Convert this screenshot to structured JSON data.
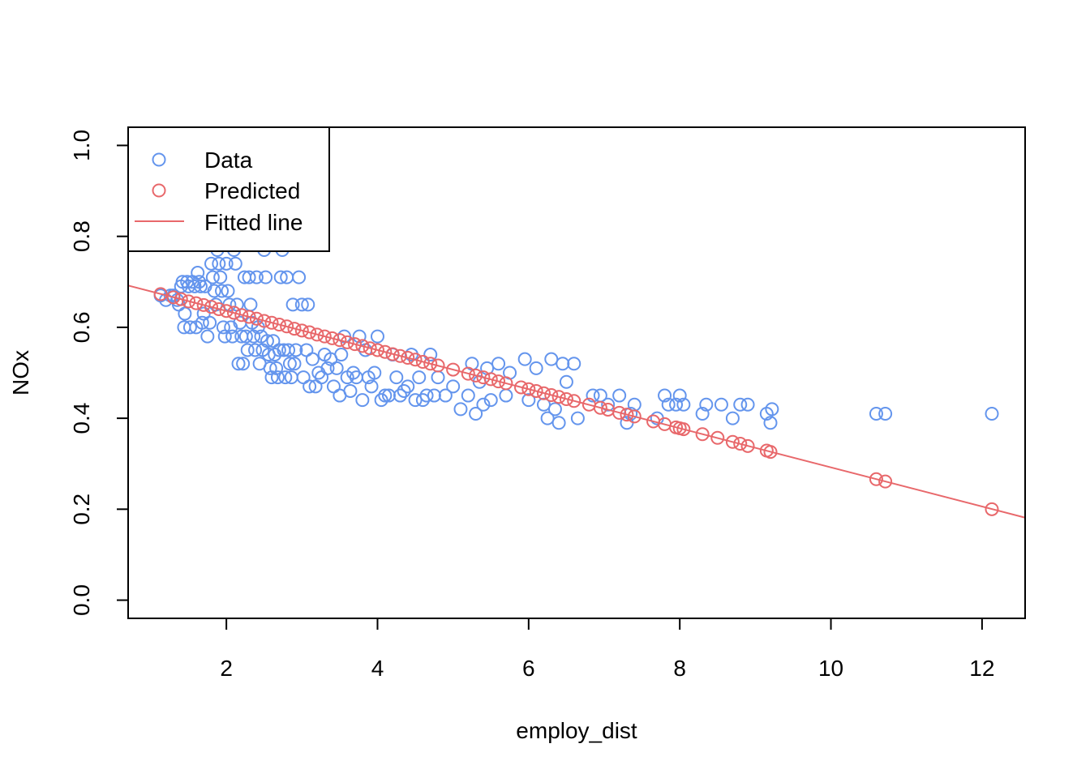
{
  "chart_data": {
    "type": "scatter",
    "title": "",
    "xlabel": "employ_dist",
    "ylabel": "NOx",
    "xlim": [
      0.7,
      12.57
    ],
    "ylim": [
      -0.04,
      1.04
    ],
    "x_ticks": [
      2,
      4,
      6,
      8,
      10,
      12
    ],
    "y_ticks": [
      0.0,
      0.2,
      0.4,
      0.6,
      0.8,
      1.0
    ],
    "x_tick_labels": [
      "2",
      "4",
      "6",
      "8",
      "10",
      "12"
    ],
    "y_tick_labels": [
      "0.0",
      "0.2",
      "0.4",
      "0.6",
      "0.8",
      "1.0"
    ],
    "grid": false,
    "legend": {
      "position": "top-left",
      "entries": [
        {
          "label": "Data",
          "type": "point",
          "color": "#6495ED"
        },
        {
          "label": "Predicted",
          "type": "point",
          "color": "#E8686B"
        },
        {
          "label": "Fitted line",
          "type": "line",
          "color": "#E8686B"
        }
      ]
    },
    "fitted_line": {
      "name": "Fitted line",
      "color": "#E8686B",
      "intercept": 0.722,
      "slope": -0.043
    },
    "series": [
      {
        "name": "Data",
        "color": "#6495ED",
        "points": [
          [
            1.13,
            0.67
          ],
          [
            1.2,
            0.66
          ],
          [
            1.26,
            0.67
          ],
          [
            1.3,
            0.67
          ],
          [
            1.35,
            0.66
          ],
          [
            1.37,
            0.65
          ],
          [
            1.4,
            0.69
          ],
          [
            1.42,
            0.7
          ],
          [
            1.44,
            0.6
          ],
          [
            1.45,
            0.63
          ],
          [
            1.48,
            0.7
          ],
          [
            1.5,
            0.69
          ],
          [
            1.52,
            0.6
          ],
          [
            1.55,
            0.7
          ],
          [
            1.58,
            0.69
          ],
          [
            1.6,
            0.6
          ],
          [
            1.62,
            0.72
          ],
          [
            1.64,
            0.7
          ],
          [
            1.66,
            0.69
          ],
          [
            1.68,
            0.61
          ],
          [
            1.7,
            0.63
          ],
          [
            1.72,
            0.69
          ],
          [
            1.75,
            0.58
          ],
          [
            1.78,
            0.61
          ],
          [
            1.8,
            0.74
          ],
          [
            1.82,
            0.71
          ],
          [
            1.84,
            0.68
          ],
          [
            1.86,
            0.65
          ],
          [
            1.88,
            0.77
          ],
          [
            1.9,
            0.74
          ],
          [
            1.92,
            0.71
          ],
          [
            1.94,
            0.68
          ],
          [
            1.96,
            0.6
          ],
          [
            1.98,
            0.58
          ],
          [
            2.0,
            0.74
          ],
          [
            2.02,
            0.68
          ],
          [
            2.04,
            0.65
          ],
          [
            2.06,
            0.6
          ],
          [
            2.08,
            0.58
          ],
          [
            2.1,
            0.77
          ],
          [
            2.12,
            0.74
          ],
          [
            2.14,
            0.65
          ],
          [
            2.16,
            0.52
          ],
          [
            2.18,
            0.61
          ],
          [
            2.2,
            0.58
          ],
          [
            2.22,
            0.52
          ],
          [
            2.24,
            0.71
          ],
          [
            2.26,
            0.58
          ],
          [
            2.28,
            0.55
          ],
          [
            2.3,
            0.71
          ],
          [
            2.32,
            0.65
          ],
          [
            2.34,
            0.61
          ],
          [
            2.36,
            0.58
          ],
          [
            2.38,
            0.55
          ],
          [
            2.4,
            0.71
          ],
          [
            2.42,
            0.6
          ],
          [
            2.44,
            0.52
          ],
          [
            2.46,
            0.58
          ],
          [
            2.48,
            0.55
          ],
          [
            2.5,
            0.77
          ],
          [
            2.52,
            0.71
          ],
          [
            2.54,
            0.57
          ],
          [
            2.56,
            0.54
          ],
          [
            2.58,
            0.51
          ],
          [
            2.6,
            0.49
          ],
          [
            2.62,
            0.57
          ],
          [
            2.64,
            0.54
          ],
          [
            2.66,
            0.51
          ],
          [
            2.68,
            0.49
          ],
          [
            2.7,
            0.55
          ],
          [
            2.72,
            0.71
          ],
          [
            2.74,
            0.77
          ],
          [
            2.76,
            0.55
          ],
          [
            2.78,
            0.49
          ],
          [
            2.8,
            0.71
          ],
          [
            2.82,
            0.55
          ],
          [
            2.84,
            0.52
          ],
          [
            2.86,
            0.49
          ],
          [
            2.88,
            0.65
          ],
          [
            2.9,
            0.52
          ],
          [
            2.92,
            0.55
          ],
          [
            2.96,
            0.71
          ],
          [
            3.0,
            0.65
          ],
          [
            3.02,
            0.49
          ],
          [
            3.06,
            0.55
          ],
          [
            3.08,
            0.65
          ],
          [
            3.1,
            0.47
          ],
          [
            3.14,
            0.53
          ],
          [
            3.18,
            0.47
          ],
          [
            3.22,
            0.5
          ],
          [
            3.26,
            0.49
          ],
          [
            3.3,
            0.54
          ],
          [
            3.34,
            0.51
          ],
          [
            3.38,
            0.53
          ],
          [
            3.42,
            0.47
          ],
          [
            3.46,
            0.51
          ],
          [
            3.5,
            0.45
          ],
          [
            3.52,
            0.54
          ],
          [
            3.56,
            0.58
          ],
          [
            3.6,
            0.49
          ],
          [
            3.64,
            0.46
          ],
          [
            3.68,
            0.5
          ],
          [
            3.72,
            0.49
          ],
          [
            3.76,
            0.58
          ],
          [
            3.8,
            0.44
          ],
          [
            3.84,
            0.55
          ],
          [
            3.88,
            0.49
          ],
          [
            3.92,
            0.47
          ],
          [
            3.96,
            0.5
          ],
          [
            4.0,
            0.58
          ],
          [
            4.05,
            0.44
          ],
          [
            4.1,
            0.45
          ],
          [
            4.15,
            0.45
          ],
          [
            4.2,
            0.54
          ],
          [
            4.25,
            0.49
          ],
          [
            4.3,
            0.45
          ],
          [
            4.35,
            0.46
          ],
          [
            4.4,
            0.47
          ],
          [
            4.45,
            0.54
          ],
          [
            4.5,
            0.44
          ],
          [
            4.55,
            0.49
          ],
          [
            4.6,
            0.44
          ],
          [
            4.65,
            0.45
          ],
          [
            4.7,
            0.54
          ],
          [
            4.75,
            0.45
          ],
          [
            4.8,
            0.49
          ],
          [
            4.9,
            0.45
          ],
          [
            5.0,
            0.47
          ],
          [
            5.1,
            0.42
          ],
          [
            5.2,
            0.45
          ],
          [
            5.25,
            0.52
          ],
          [
            5.3,
            0.41
          ],
          [
            5.35,
            0.48
          ],
          [
            5.4,
            0.43
          ],
          [
            5.45,
            0.51
          ],
          [
            5.5,
            0.44
          ],
          [
            5.6,
            0.52
          ],
          [
            5.7,
            0.45
          ],
          [
            5.75,
            0.5
          ],
          [
            5.95,
            0.53
          ],
          [
            6.0,
            0.44
          ],
          [
            6.1,
            0.51
          ],
          [
            6.2,
            0.43
          ],
          [
            6.25,
            0.4
          ],
          [
            6.3,
            0.53
          ],
          [
            6.35,
            0.42
          ],
          [
            6.4,
            0.39
          ],
          [
            6.45,
            0.52
          ],
          [
            6.5,
            0.48
          ],
          [
            6.6,
            0.52
          ],
          [
            6.65,
            0.4
          ],
          [
            6.85,
            0.45
          ],
          [
            6.95,
            0.45
          ],
          [
            7.05,
            0.43
          ],
          [
            7.2,
            0.45
          ],
          [
            7.3,
            0.39
          ],
          [
            7.35,
            0.41
          ],
          [
            7.4,
            0.43
          ],
          [
            7.7,
            0.4
          ],
          [
            7.8,
            0.45
          ],
          [
            7.85,
            0.43
          ],
          [
            7.95,
            0.43
          ],
          [
            8.0,
            0.45
          ],
          [
            8.05,
            0.43
          ],
          [
            8.3,
            0.41
          ],
          [
            8.35,
            0.43
          ],
          [
            8.55,
            0.43
          ],
          [
            8.7,
            0.4
          ],
          [
            8.8,
            0.43
          ],
          [
            8.9,
            0.43
          ],
          [
            9.15,
            0.41
          ],
          [
            9.2,
            0.39
          ],
          [
            9.22,
            0.42
          ],
          [
            10.6,
            0.41
          ],
          [
            10.72,
            0.41
          ],
          [
            12.13,
            0.41
          ]
        ]
      },
      {
        "name": "Predicted",
        "color": "#E8686B",
        "points": [
          [
            1.13,
            0.673
          ],
          [
            1.3,
            0.666
          ],
          [
            1.4,
            0.662
          ],
          [
            1.5,
            0.657
          ],
          [
            1.6,
            0.653
          ],
          [
            1.7,
            0.649
          ],
          [
            1.8,
            0.645
          ],
          [
            1.9,
            0.64
          ],
          [
            2.0,
            0.636
          ],
          [
            2.1,
            0.632
          ],
          [
            2.2,
            0.627
          ],
          [
            2.3,
            0.623
          ],
          [
            2.4,
            0.619
          ],
          [
            2.5,
            0.614
          ],
          [
            2.6,
            0.61
          ],
          [
            2.7,
            0.606
          ],
          [
            2.8,
            0.602
          ],
          [
            2.9,
            0.597
          ],
          [
            3.0,
            0.593
          ],
          [
            3.1,
            0.589
          ],
          [
            3.2,
            0.584
          ],
          [
            3.3,
            0.58
          ],
          [
            3.4,
            0.576
          ],
          [
            3.5,
            0.572
          ],
          [
            3.6,
            0.567
          ],
          [
            3.7,
            0.563
          ],
          [
            3.8,
            0.559
          ],
          [
            3.9,
            0.554
          ],
          [
            4.0,
            0.55
          ],
          [
            4.1,
            0.546
          ],
          [
            4.2,
            0.541
          ],
          [
            4.3,
            0.537
          ],
          [
            4.4,
            0.533
          ],
          [
            4.5,
            0.529
          ],
          [
            4.6,
            0.524
          ],
          [
            4.7,
            0.52
          ],
          [
            4.8,
            0.516
          ],
          [
            5.0,
            0.507
          ],
          [
            5.2,
            0.498
          ],
          [
            5.3,
            0.494
          ],
          [
            5.4,
            0.49
          ],
          [
            5.5,
            0.486
          ],
          [
            5.6,
            0.481
          ],
          [
            5.7,
            0.477
          ],
          [
            5.9,
            0.468
          ],
          [
            6.0,
            0.464
          ],
          [
            6.1,
            0.46
          ],
          [
            6.2,
            0.455
          ],
          [
            6.3,
            0.451
          ],
          [
            6.4,
            0.447
          ],
          [
            6.5,
            0.442
          ],
          [
            6.6,
            0.438
          ],
          [
            6.8,
            0.43
          ],
          [
            6.95,
            0.423
          ],
          [
            7.05,
            0.419
          ],
          [
            7.2,
            0.412
          ],
          [
            7.3,
            0.408
          ],
          [
            7.4,
            0.404
          ],
          [
            7.65,
            0.393
          ],
          [
            7.8,
            0.387
          ],
          [
            7.95,
            0.38
          ],
          [
            8.0,
            0.378
          ],
          [
            8.05,
            0.376
          ],
          [
            8.3,
            0.365
          ],
          [
            8.5,
            0.357
          ],
          [
            8.7,
            0.348
          ],
          [
            8.8,
            0.344
          ],
          [
            8.9,
            0.339
          ],
          [
            9.15,
            0.329
          ],
          [
            9.2,
            0.326
          ],
          [
            10.6,
            0.266
          ],
          [
            10.72,
            0.261
          ],
          [
            12.13,
            0.2
          ]
        ]
      }
    ]
  }
}
